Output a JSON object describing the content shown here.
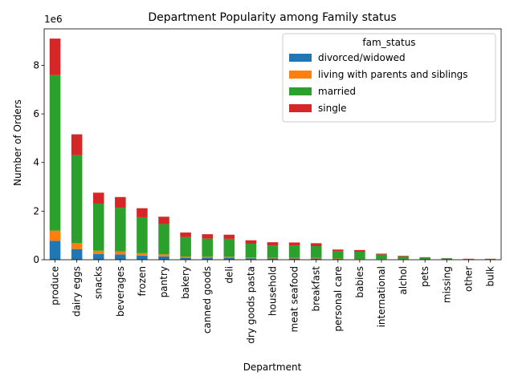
{
  "chart_data": {
    "type": "bar",
    "stacked": true,
    "title": "Department Popularity among Family status",
    "xlabel": "Department",
    "ylabel": "Number of Orders",
    "y_offset_label": "1e6",
    "y_scale": 1000000,
    "ylim": [
      0,
      9.5
    ],
    "yticks": [
      "0",
      "2",
      "4",
      "6",
      "8"
    ],
    "yticks_values": [
      0,
      2,
      4,
      6,
      8
    ],
    "grid": false,
    "legend": {
      "title": "fam_status",
      "position": "top-right"
    },
    "categories": [
      "produce",
      "dairy eggs",
      "snacks",
      "beverages",
      "frozen",
      "pantry",
      "bakery",
      "canned goods",
      "deli",
      "dry goods pasta",
      "household",
      "meat seafood",
      "breakfast",
      "personal care",
      "babies",
      "international",
      "alchol",
      "pets",
      "missing",
      "other",
      "bulk"
    ],
    "series": [
      {
        "name": "divorced/widowed",
        "color": "#1f77b4",
        "values": [
          0.78,
          0.44,
          0.24,
          0.22,
          0.17,
          0.14,
          0.08,
          0.08,
          0.08,
          0.06,
          0.05,
          0.05,
          0.05,
          0.03,
          0.02,
          0.02,
          0.01,
          0.01,
          0.005,
          0.003,
          0.003
        ]
      },
      {
        "name": "living with parents and siblings",
        "color": "#ff7f0e",
        "values": [
          0.42,
          0.24,
          0.13,
          0.12,
          0.1,
          0.08,
          0.05,
          0.04,
          0.04,
          0.03,
          0.03,
          0.03,
          0.03,
          0.02,
          0.01,
          0.01,
          0.01,
          0.005,
          0.003,
          0.002,
          0.002
        ]
      },
      {
        "name": "married",
        "color": "#2ca02c",
        "values": [
          6.4,
          3.62,
          1.94,
          1.8,
          1.48,
          1.25,
          0.8,
          0.75,
          0.74,
          0.57,
          0.51,
          0.51,
          0.48,
          0.3,
          0.3,
          0.18,
          0.11,
          0.07,
          0.05,
          0.025,
          0.025
        ]
      },
      {
        "name": "single",
        "color": "#d62728",
        "values": [
          1.5,
          0.86,
          0.45,
          0.44,
          0.37,
          0.3,
          0.19,
          0.18,
          0.17,
          0.14,
          0.13,
          0.12,
          0.12,
          0.07,
          0.07,
          0.04,
          0.03,
          0.02,
          0.01,
          0.01,
          0.01
        ]
      }
    ]
  }
}
